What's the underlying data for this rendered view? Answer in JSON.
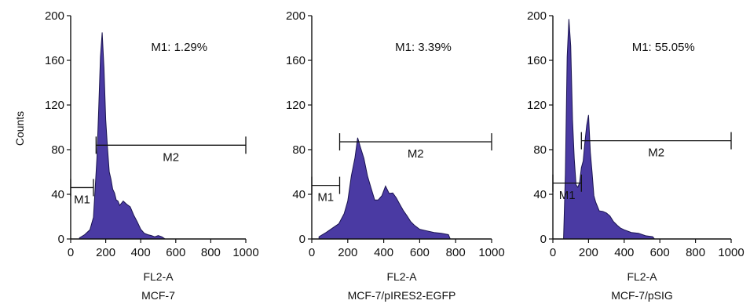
{
  "y_axis_label": "Counts",
  "colors": {
    "fill": "#4a3aa3",
    "stroke": "#1a1450",
    "axis": "#111111"
  },
  "chart_data": [
    {
      "type": "area",
      "panel_title": "MCF-7",
      "xlabel": "FL2-A",
      "ylabel": "Counts",
      "xlim": [
        0,
        1000
      ],
      "ylim": [
        0,
        200
      ],
      "xticks": [
        "0",
        "200",
        "400",
        "600",
        "800",
        "1000"
      ],
      "yticks": [
        "0",
        "40",
        "80",
        "120",
        "160",
        "200"
      ],
      "x": [
        50,
        80,
        110,
        130,
        150,
        160,
        170,
        180,
        190,
        200,
        210,
        220,
        230,
        240,
        250,
        260,
        270,
        280,
        300,
        320,
        340,
        360,
        380,
        400,
        420,
        440,
        460,
        480,
        500,
        520,
        540
      ],
      "counts": [
        1,
        4,
        8,
        20,
        70,
        120,
        160,
        188,
        150,
        110,
        80,
        62,
        52,
        46,
        40,
        36,
        33,
        31,
        33,
        32,
        28,
        22,
        15,
        9,
        5,
        4,
        3,
        2,
        3,
        2,
        0
      ],
      "markers": [
        {
          "label": "M1",
          "text": "M1: 1.29%",
          "start": 0,
          "end": 130,
          "y": 46
        },
        {
          "label": "M2",
          "start": 145,
          "end": 1000,
          "y": 84
        }
      ]
    },
    {
      "type": "area",
      "panel_title": "MCF-7/pIRES2-EGFP",
      "xlabel": "FL2-A",
      "ylabel": "Counts",
      "xlim": [
        0,
        1000
      ],
      "ylim": [
        0,
        200
      ],
      "xticks": [
        "0",
        "200",
        "400",
        "600",
        "800",
        "1000"
      ],
      "yticks": [
        "0",
        "40",
        "80",
        "120",
        "160",
        "200"
      ],
      "x": [
        40,
        80,
        120,
        150,
        180,
        200,
        220,
        240,
        255,
        270,
        290,
        310,
        330,
        350,
        370,
        390,
        410,
        430,
        450,
        470,
        490,
        510,
        530,
        550,
        570,
        600,
        640,
        680,
        720,
        760,
        770
      ],
      "counts": [
        2,
        6,
        10,
        14,
        22,
        35,
        55,
        75,
        88,
        85,
        70,
        58,
        44,
        36,
        34,
        40,
        46,
        42,
        40,
        38,
        30,
        26,
        20,
        16,
        12,
        9,
        7,
        6,
        5,
        4,
        0
      ],
      "markers": [
        {
          "label": "M1",
          "text": "M1: 3.39%",
          "start": 0,
          "end": 155,
          "y": 48
        },
        {
          "label": "M2",
          "start": 155,
          "end": 1000,
          "y": 87
        }
      ]
    },
    {
      "type": "area",
      "panel_title": "MCF-7/pSIG",
      "xlabel": "FL2-A",
      "ylabel": "Counts",
      "xlim": [
        0,
        1000
      ],
      "ylim": [
        0,
        200
      ],
      "xticks": [
        "0",
        "200",
        "400",
        "600",
        "800",
        "1000"
      ],
      "yticks": [
        "0",
        "40",
        "80",
        "120",
        "160",
        "200"
      ],
      "x": [
        60,
        70,
        80,
        90,
        100,
        110,
        120,
        130,
        140,
        150,
        160,
        170,
        180,
        190,
        200,
        210,
        220,
        230,
        240,
        260,
        280,
        300,
        320,
        340,
        360,
        380,
        400,
        440,
        480,
        520,
        560,
        570
      ],
      "counts": [
        0,
        60,
        160,
        200,
        170,
        110,
        70,
        50,
        45,
        52,
        62,
        72,
        85,
        105,
        108,
        80,
        58,
        40,
        32,
        26,
        24,
        24,
        20,
        16,
        12,
        10,
        8,
        6,
        5,
        3,
        2,
        0
      ],
      "markers": [
        {
          "label": "M1",
          "text": "M1: 55.05%",
          "start": 0,
          "end": 160,
          "y": 50
        },
        {
          "label": "M2",
          "start": 160,
          "end": 1000,
          "y": 88
        }
      ]
    }
  ]
}
